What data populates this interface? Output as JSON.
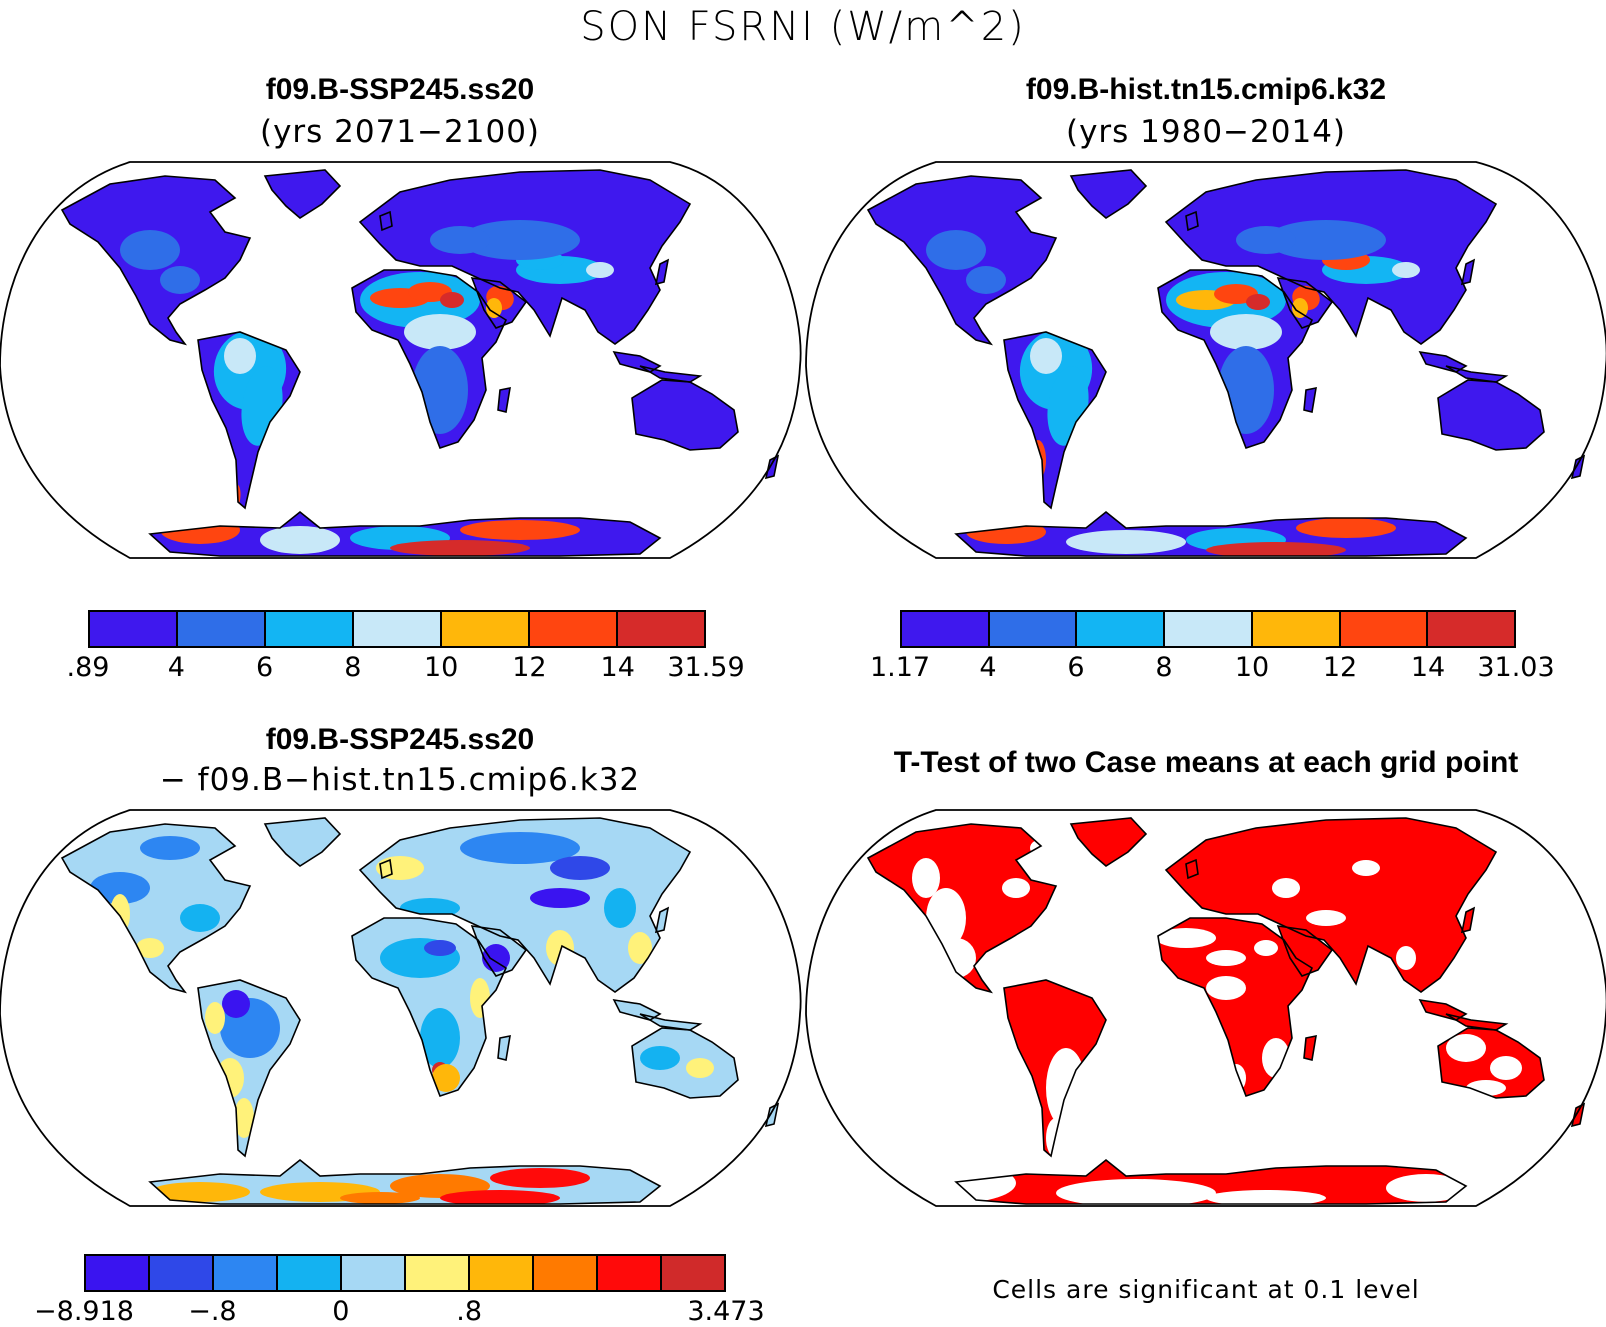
{
  "figure": {
    "title": "SON FSRNI (W/m^2)"
  },
  "panels": [
    {
      "id": "case1",
      "title": "f09.B-SSP245.ss20",
      "subtitle": "(yrs 2071−2100)",
      "colorbar": {
        "colors": [
          "#3f18ee",
          "#2f6ee8",
          "#13b5f3",
          "#c8e8f8",
          "#ffb70a",
          "#ff4510",
          "#d62b2a"
        ],
        "ticks": [
          ".89",
          "4",
          "6",
          "8",
          "10",
          "12",
          "14",
          "31.59"
        ]
      }
    },
    {
      "id": "case2",
      "title": "f09.B-hist.tn15.cmip6.k32",
      "subtitle": "(yrs 1980−2014)",
      "colorbar": {
        "colors": [
          "#3f18ee",
          "#2f6ee8",
          "#13b5f3",
          "#c8e8f8",
          "#ffb70a",
          "#ff4510",
          "#d62b2a"
        ],
        "ticks": [
          "1.17",
          "4",
          "6",
          "8",
          "10",
          "12",
          "14",
          "31.03"
        ]
      }
    },
    {
      "id": "diff",
      "title": "f09.B-SSP245.ss20",
      "subtitle": "− f09.B−hist.tn15.cmip6.k32",
      "colorbar": {
        "colors": [
          "#3a14f0",
          "#2f48e8",
          "#2d86f2",
          "#14b2f1",
          "#a6d8f4",
          "#fff27a",
          "#ffb70a",
          "#ff7a00",
          "#ff0a0a",
          "#d02a2a"
        ],
        "ticks": [
          "−8.918",
          "",
          "−.8",
          "",
          "0",
          "",
          ".8",
          "",
          "",
          "",
          "3.473"
        ]
      }
    },
    {
      "id": "ttest",
      "title": "T-Test of two Case means at each grid point",
      "note": "Cells are significant at 0.1 level",
      "fill_color": "#ff0000"
    }
  ],
  "map_colors": {
    "cold": "#3f18ee",
    "cool": "#2f6ee8",
    "mid": "#13b5f3",
    "light": "#c8e8f8",
    "warm": "#ffb70a",
    "hot": "#ff4510",
    "hottest": "#d62b2a",
    "diff_light": "#a6d8f4",
    "diff_yellow": "#fff27a",
    "sig_red": "#ff0000"
  }
}
